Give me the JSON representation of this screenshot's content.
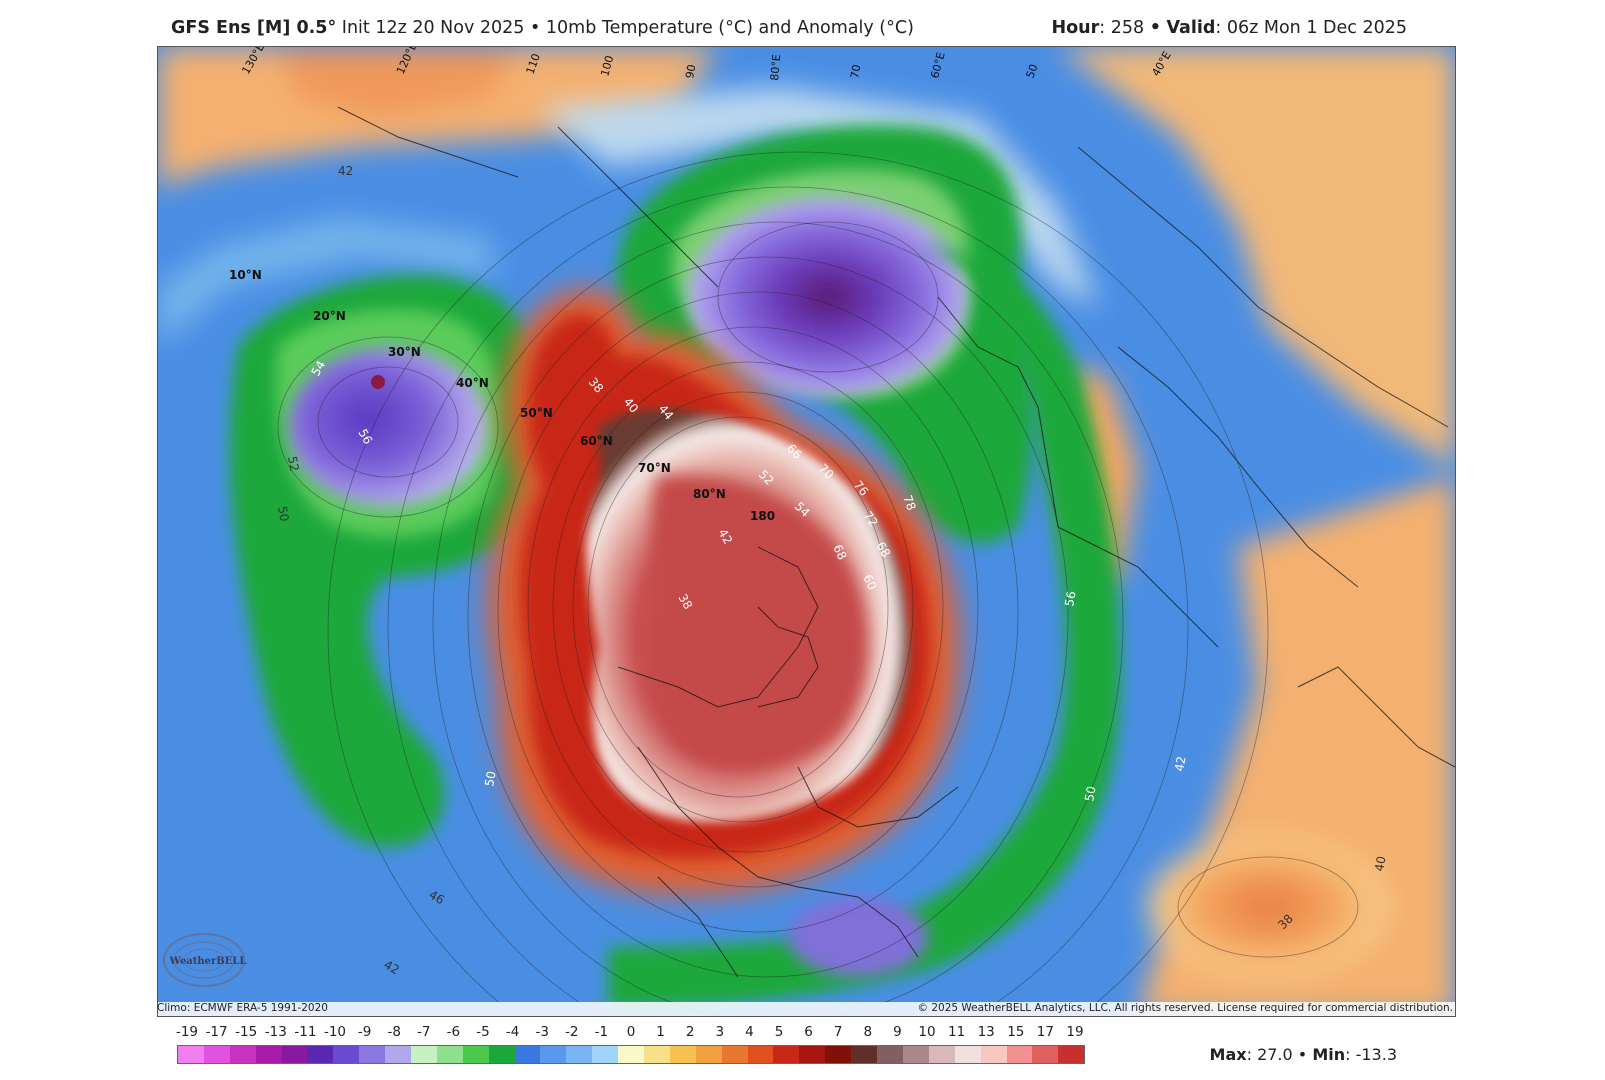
{
  "header": {
    "model": "GFS Ens [M] 0.5",
    "deg": "°",
    "init": "Init 12z 20 Nov 2025",
    "sep": "•",
    "product": "10mb Temperature (°C) and Anomaly (°C)",
    "hour_label": "Hour",
    "hour_value": ": 258",
    "valid_label": "Valid",
    "valid_value": ": 06z Mon 1 Dec 2025"
  },
  "map": {
    "lat_labels": [
      "10°N",
      "20°N",
      "30°N",
      "40°N",
      "50°N",
      "60°N",
      "70°N",
      "80°N",
      "180"
    ],
    "lon_labels": [
      "130°E",
      "120°E",
      "110",
      "100",
      "90",
      "80°E",
      "70",
      "60°E",
      "50",
      "40°E"
    ],
    "contour_labels": [
      "42",
      "54",
      "56",
      "52",
      "50",
      "38",
      "40",
      "44",
      "66",
      "70",
      "76",
      "72",
      "68",
      "52",
      "54",
      "42",
      "38",
      "60",
      "68",
      "78",
      "56",
      "42",
      "50",
      "40",
      "38",
      "50",
      "46",
      "42"
    ],
    "features": [
      "polar-vortex-warm-anomaly",
      "cold-anomaly-siberia",
      "cold-anomaly-pacific",
      "cold-anomaly-southeast-us"
    ]
  },
  "footer": {
    "climo": "Climo: ECMWF ERA-5 1991-2020",
    "copyright": "© 2025 WeatherBELL Analytics, LLC. All rights reserved. License required for commercial distribution.",
    "logo_text": "WeatherBELL"
  },
  "legend": {
    "labels": [
      "-19",
      "-17",
      "-15",
      "-13",
      "-11",
      "-10",
      "-9",
      "-8",
      "-7",
      "-6",
      "-5",
      "-4",
      "-3",
      "-2",
      "-1",
      "0",
      "1",
      "2",
      "3",
      "4",
      "5",
      "6",
      "7",
      "8",
      "9",
      "10",
      "11",
      "13",
      "15",
      "17",
      "19"
    ],
    "colors": [
      "#f07ef0",
      "#e052e0",
      "#c832c0",
      "#a81aa8",
      "#8a18a0",
      "#5a28b0",
      "#6a4ad0",
      "#8a78e0",
      "#b0a8ec",
      "#c8f0c0",
      "#8ee08a",
      "#4cc84c",
      "#1aa83a",
      "#3a78e0",
      "#5a98ec",
      "#7ab4f4",
      "#a0d4f8",
      "#f8f8c8",
      "#f8e088",
      "#f8c050",
      "#f0a040",
      "#e87830",
      "#e05020",
      "#c82818",
      "#a81410",
      "#801008",
      "#603028",
      "#806060",
      "#a88888",
      "#d8b8b8",
      "#f0e0e0",
      "#f8c8c0",
      "#f09090",
      "#e06060",
      "#c83030"
    ],
    "max_label": "Max",
    "max_value": ": 27.0",
    "min_label": "Min",
    "min_value": ": -13.3",
    "sep": "•"
  }
}
